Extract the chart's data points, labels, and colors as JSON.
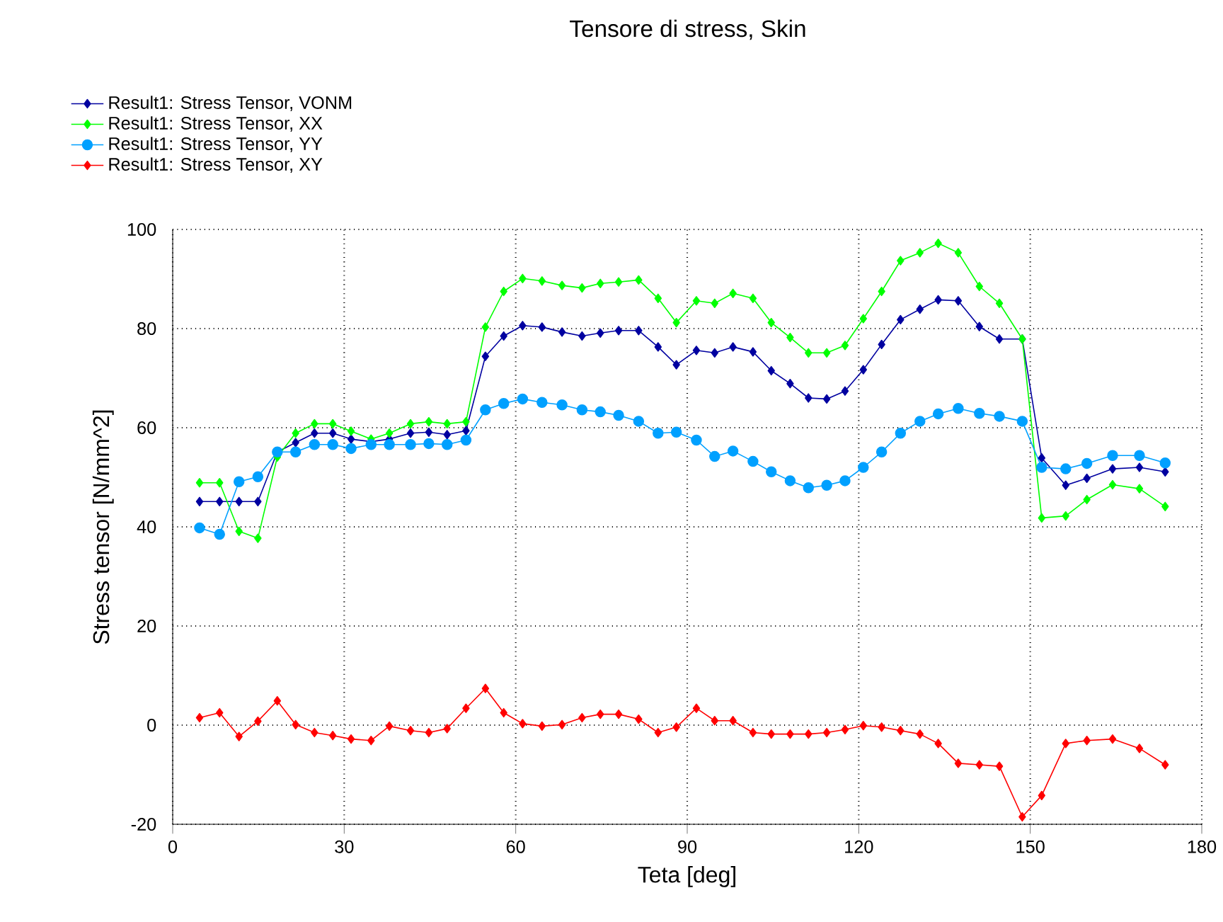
{
  "chart_data": {
    "type": "line",
    "title": "Tensore di stress, Skin",
    "xlabel": "Teta [deg]",
    "ylabel": "Stress tensor [N/mm^2]",
    "x": [
      4.7,
      8.2,
      11.6,
      14.9,
      18.3,
      21.5,
      24.8,
      28.0,
      31.2,
      34.7,
      37.9,
      41.6,
      44.8,
      48.0,
      51.3,
      54.7,
      57.9,
      61.2,
      64.6,
      68.1,
      71.6,
      74.8,
      78.0,
      81.5,
      84.9,
      88.1,
      91.6,
      94.8,
      98.0,
      101.5,
      104.7,
      108.0,
      111.2,
      114.4,
      117.6,
      120.8,
      124.0,
      127.3,
      130.7,
      133.9,
      137.4,
      141.1,
      144.6,
      148.6,
      152.0,
      156.2,
      159.9,
      164.4,
      169.1,
      173.6
    ],
    "series": [
      {
        "name": "Result1: Stress Tensor, VONM",
        "color": "#0000a0",
        "marker": "diamond",
        "values": [
          45.1,
          45.1,
          45.1,
          45.1,
          55.1,
          57.0,
          58.9,
          58.9,
          57.7,
          57.2,
          57.7,
          58.9,
          59.1,
          58.6,
          59.4,
          74.4,
          78.5,
          80.6,
          80.3,
          79.3,
          78.5,
          79.1,
          79.6,
          79.6,
          76.3,
          72.7,
          75.6,
          75.1,
          76.3,
          75.3,
          71.5,
          68.9,
          66.0,
          65.8,
          67.4,
          71.7,
          76.8,
          81.8,
          83.9,
          85.8,
          85.6,
          80.4,
          77.9,
          77.9,
          53.9,
          48.4,
          49.8,
          51.7,
          52.0,
          51.1
        ]
      },
      {
        "name": "Result1: Stress Tensor, XX",
        "color": "#00ff00",
        "marker": "diamond",
        "values": [
          48.9,
          48.9,
          39.1,
          37.7,
          54.1,
          58.9,
          60.8,
          60.8,
          59.3,
          57.7,
          58.9,
          60.8,
          61.2,
          60.8,
          61.2,
          80.3,
          87.5,
          90.1,
          89.6,
          88.7,
          88.2,
          89.1,
          89.4,
          89.8,
          86.1,
          81.2,
          85.6,
          85.1,
          87.1,
          86.1,
          81.2,
          78.2,
          75.1,
          75.1,
          76.6,
          82.0,
          87.5,
          93.7,
          95.3,
          97.2,
          95.3,
          88.5,
          85.1,
          77.9,
          41.8,
          42.2,
          45.5,
          48.5,
          47.7,
          44.1
        ]
      },
      {
        "name": "Result1: Stress Tensor, YY",
        "color": "#00a0ff",
        "marker": "circle",
        "values": [
          39.8,
          38.5,
          49.1,
          50.1,
          55.1,
          55.1,
          56.6,
          56.6,
          55.8,
          56.6,
          56.6,
          56.6,
          56.8,
          56.6,
          57.5,
          63.6,
          64.9,
          65.8,
          65.1,
          64.6,
          63.6,
          63.2,
          62.5,
          61.3,
          58.9,
          59.1,
          57.5,
          54.2,
          55.3,
          53.2,
          51.1,
          49.3,
          47.9,
          48.4,
          49.3,
          52.0,
          55.1,
          58.9,
          61.3,
          62.8,
          63.9,
          62.9,
          62.3,
          61.3,
          52.0,
          51.7,
          52.8,
          54.4,
          54.4,
          52.9
        ]
      },
      {
        "name": "Result1: Stress Tensor, XY",
        "color": "#ff0000",
        "marker": "diamond",
        "values": [
          1.5,
          2.5,
          -2.3,
          0.8,
          4.9,
          0.1,
          -1.5,
          -2.1,
          -2.8,
          -3.1,
          -0.2,
          -1.1,
          -1.5,
          -0.7,
          3.4,
          7.4,
          2.5,
          0.3,
          -0.2,
          0.1,
          1.5,
          2.2,
          2.2,
          1.2,
          -1.5,
          -0.4,
          3.4,
          0.9,
          0.9,
          -1.5,
          -1.8,
          -1.8,
          -1.8,
          -1.5,
          -0.9,
          -0.1,
          -0.4,
          -1.1,
          -1.8,
          -3.7,
          -7.7,
          -8.0,
          -8.3,
          -18.5,
          -14.2,
          -3.7,
          -3.1,
          -2.8,
          -4.7,
          -8.0
        ]
      }
    ],
    "xlim": [
      0,
      180
    ],
    "ylim": [
      -20,
      100
    ],
    "xticks": [
      0,
      30,
      60,
      90,
      120,
      150,
      180
    ],
    "yticks": [
      -20,
      0,
      20,
      40,
      60,
      80,
      100
    ],
    "grid": true,
    "legend": "top left"
  }
}
